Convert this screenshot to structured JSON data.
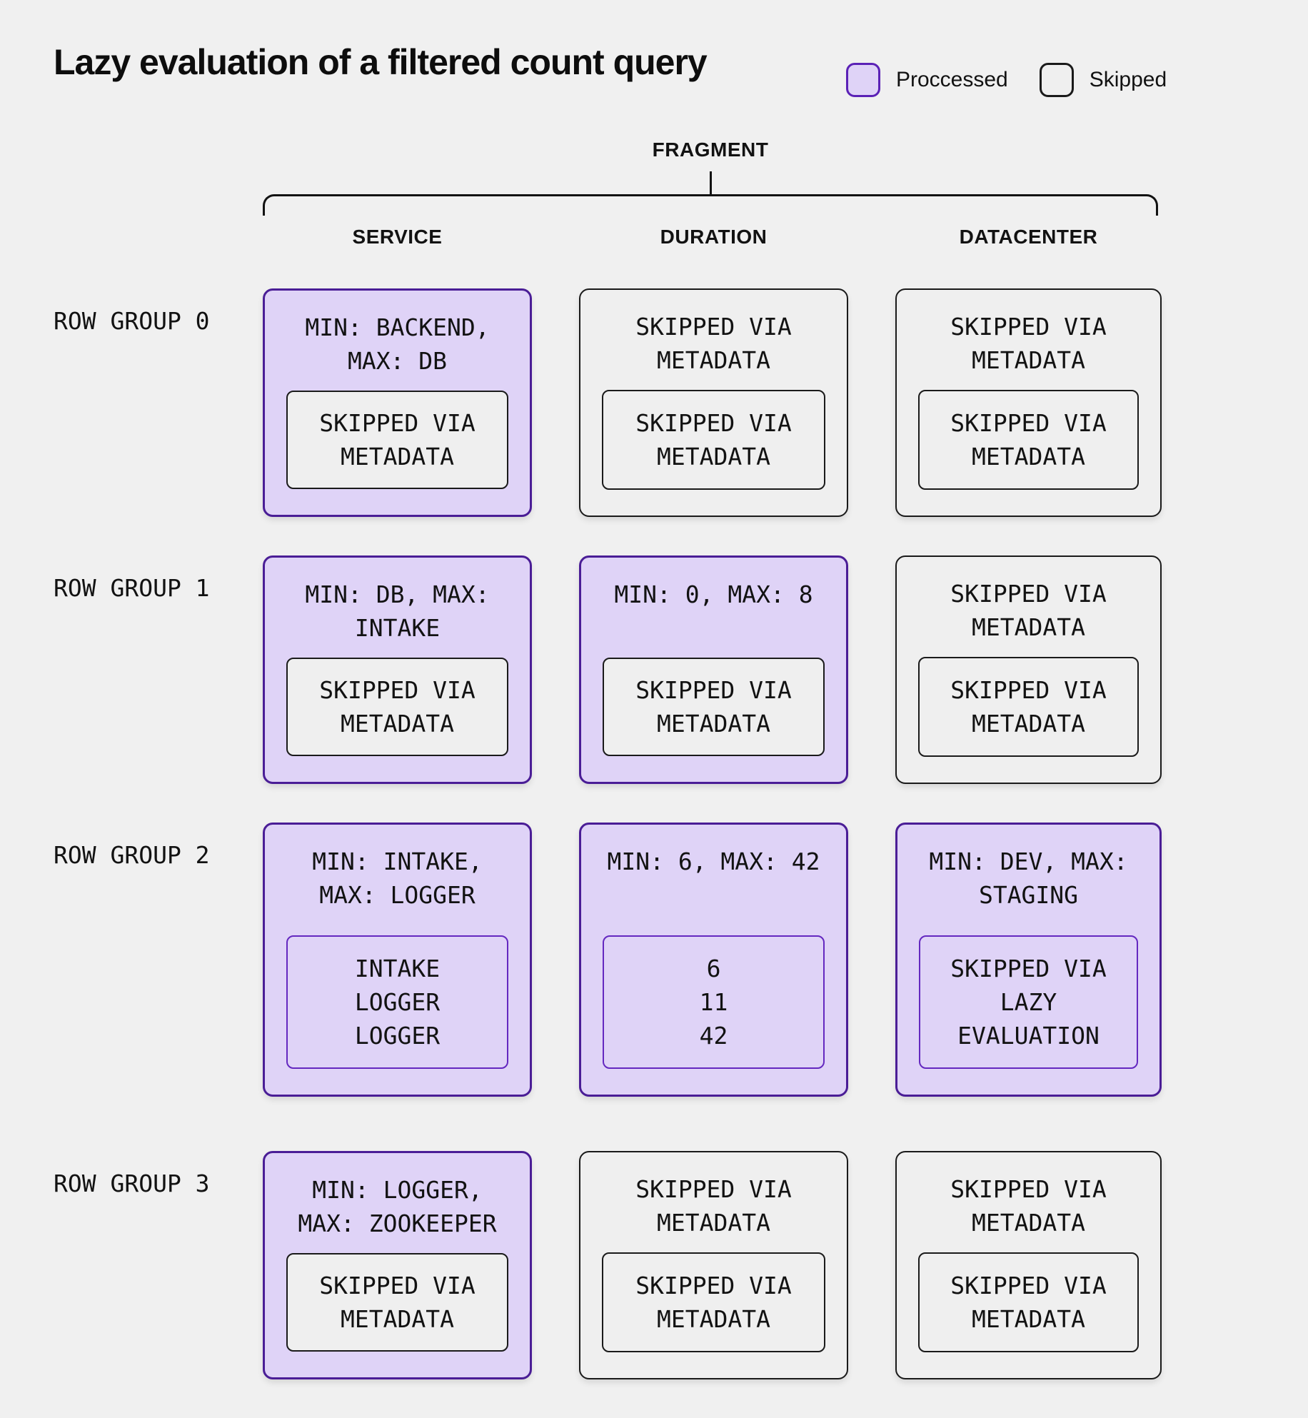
{
  "title": "Lazy evaluation of a filtered count query",
  "legend": {
    "processed": {
      "label": "Proccessed"
    },
    "skipped": {
      "label": "Skipped"
    }
  },
  "fragment": {
    "label": "FRAGMENT"
  },
  "columns": {
    "service": "SERVICE",
    "duration": "DURATION",
    "datacenter": "DATACENTER"
  },
  "row_groups": [
    {
      "label": "ROW GROUP 0",
      "cells": [
        {
          "state": "processed",
          "header": "MIN: BACKEND,\nMAX: DB",
          "inner": {
            "state": "skipped",
            "text": "SKIPPED VIA\nMETADATA"
          }
        },
        {
          "state": "skipped",
          "header": "SKIPPED VIA\nMETADATA",
          "inner": {
            "state": "skipped",
            "text": "SKIPPED VIA\nMETADATA"
          }
        },
        {
          "state": "skipped",
          "header": "SKIPPED VIA\nMETADATA",
          "inner": {
            "state": "skipped",
            "text": "SKIPPED VIA\nMETADATA"
          }
        }
      ]
    },
    {
      "label": "ROW GROUP 1",
      "cells": [
        {
          "state": "processed",
          "header": "MIN: DB, MAX:\nINTAKE",
          "inner": {
            "state": "skipped",
            "text": "SKIPPED VIA\nMETADATA"
          }
        },
        {
          "state": "processed",
          "header": "MIN: 0, MAX: 8",
          "inner": {
            "state": "skipped",
            "text": "SKIPPED VIA\nMETADATA"
          }
        },
        {
          "state": "skipped",
          "header": "SKIPPED VIA\nMETADATA",
          "inner": {
            "state": "skipped",
            "text": "SKIPPED VIA\nMETADATA"
          }
        }
      ]
    },
    {
      "label": "ROW GROUP 2",
      "cells": [
        {
          "state": "processed",
          "header": "MIN: INTAKE,\nMAX: LOGGER",
          "inner": {
            "state": "processed",
            "text": "INTAKE\nLOGGER\nLOGGER"
          }
        },
        {
          "state": "processed",
          "header": "MIN: 6, MAX: 42",
          "inner": {
            "state": "processed",
            "text": "6\n11\n42"
          }
        },
        {
          "state": "processed",
          "header": "MIN: DEV, MAX:\nSTAGING",
          "inner": {
            "state": "processed",
            "text": "SKIPPED VIA\nLAZY\nEVALUATION"
          }
        }
      ]
    },
    {
      "label": "ROW GROUP 3",
      "cells": [
        {
          "state": "processed",
          "header": "MIN: LOGGER,\nMAX: ZOOKEEPER",
          "inner": {
            "state": "skipped",
            "text": "SKIPPED VIA\nMETADATA"
          }
        },
        {
          "state": "skipped",
          "header": "SKIPPED VIA\nMETADATA",
          "inner": {
            "state": "skipped",
            "text": "SKIPPED VIA\nMETADATA"
          }
        },
        {
          "state": "skipped",
          "header": "SKIPPED VIA\nMETADATA",
          "inner": {
            "state": "skipped",
            "text": "SKIPPED VIA\nMETADATA"
          }
        }
      ]
    }
  ],
  "colors": {
    "background": "#F0F0F0",
    "processed_fill": "#DFD3F7",
    "processed_border": "#4A1D96",
    "processed_inner_border": "#6428C0",
    "legend_processed_border": "#5B21B6",
    "skipped_fill": "#EFEFEF",
    "skipped_border": "#1A1A1A",
    "text": "#121212"
  }
}
